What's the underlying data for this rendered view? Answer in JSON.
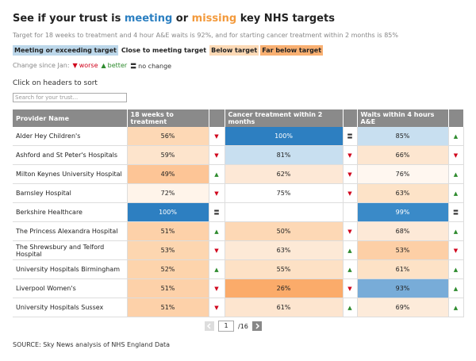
{
  "header": {
    "title": [
      {
        "text": "See if your trust is "
      },
      {
        "text": "meeting",
        "color": "#2b7fc1"
      },
      {
        "text": " or "
      },
      {
        "text": "missing",
        "color": "#f39a3c"
      },
      {
        "text": " key NHS targets"
      }
    ],
    "subtitle": "Target for 18 weeks to treatment and 4 hour A&E waits is 92%, and for starting cancer treatment within 2 months is 85%"
  },
  "key": [
    {
      "label": "Meeting or exceeding target",
      "color": "#bcd7ea"
    },
    {
      "label": "Close to meeting target",
      "color": "#ffffff"
    },
    {
      "label": "Below target",
      "color": "#fcd9b5"
    },
    {
      "label": "Far below target",
      "color": "#f9b072"
    }
  ],
  "change_legend": {
    "label": "Change since Jan:",
    "items": [
      {
        "symbol": "▼",
        "label": "worse",
        "color": "#d0021b"
      },
      {
        "symbol": "▲",
        "label": "better",
        "color": "#2e8b2e"
      },
      {
        "symbol": "〓",
        "label": "no change",
        "color": "#333333"
      }
    ]
  },
  "sort_hint": "Click on headers to sort",
  "search_placeholder": "Search for your trust...",
  "table": {
    "columns": [
      "Provider Name",
      "18 weeks to treatment",
      "Cancer treatment within 2 months",
      "Waits within 4 hours A&E"
    ],
    "rows": [
      {
        "provider": "Alder Hey Children's",
        "cells": [
          {
            "value": "56%",
            "color": "#fdd8b5",
            "change": "▼"
          },
          {
            "value": "100%",
            "color": "#2d7fc1",
            "change": "〓"
          },
          {
            "value": "85%",
            "color": "#c8dff0",
            "change": "▲"
          }
        ]
      },
      {
        "provider": "Ashford and St Peter's Hospitals",
        "cells": [
          {
            "value": "59%",
            "color": "#fde4cc",
            "change": "▼"
          },
          {
            "value": "81%",
            "color": "#c8dff0",
            "change": "▼"
          },
          {
            "value": "66%",
            "color": "#fde6d0",
            "change": "▼"
          }
        ]
      },
      {
        "provider": "Milton Keynes University Hospital",
        "cells": [
          {
            "value": "49%",
            "color": "#fdc596",
            "change": "▲"
          },
          {
            "value": "62%",
            "color": "#fde8d6",
            "change": "▼"
          },
          {
            "value": "76%",
            "color": "#fff7f0",
            "change": "▲"
          }
        ]
      },
      {
        "provider": "Barnsley Hospital",
        "cells": [
          {
            "value": "72%",
            "color": "#fff4ea",
            "change": "▼"
          },
          {
            "value": "75%",
            "color": "#ffffff",
            "change": "▼"
          },
          {
            "value": "63%",
            "color": "#fde3c8",
            "change": "▲"
          }
        ]
      },
      {
        "provider": "Berkshire Healthcare",
        "cells": [
          {
            "value": "100%",
            "color": "#2d7fc1",
            "change": "〓"
          },
          {
            "value": null,
            "color": "#ffffff",
            "change": null
          },
          {
            "value": "99%",
            "color": "#3a8ac8",
            "change": "〓"
          }
        ]
      },
      {
        "provider": "The Princess Alexandra Hospital",
        "cells": [
          {
            "value": "51%",
            "color": "#fdd1a9",
            "change": "▲"
          },
          {
            "value": "50%",
            "color": "#fdd8b5",
            "change": "▼"
          },
          {
            "value": "68%",
            "color": "#fde9d7",
            "change": "▲"
          }
        ]
      },
      {
        "provider": "The Shrewsbury and Telford Hospital",
        "cells": [
          {
            "value": "53%",
            "color": "#fdd6b0",
            "change": "▼"
          },
          {
            "value": "63%",
            "color": "#fde9d6",
            "change": "▲"
          },
          {
            "value": "53%",
            "color": "#fdcfa6",
            "change": "▼"
          }
        ]
      },
      {
        "provider": "University Hospitals Birmingham",
        "cells": [
          {
            "value": "52%",
            "color": "#fdd4ac",
            "change": "▲"
          },
          {
            "value": "55%",
            "color": "#fde1c5",
            "change": "▲"
          },
          {
            "value": "61%",
            "color": "#fde2c6",
            "change": "▲"
          }
        ]
      },
      {
        "provider": "Liverpool Women's",
        "cells": [
          {
            "value": "51%",
            "color": "#fdd1a9",
            "change": "▼"
          },
          {
            "value": "26%",
            "color": "#fbab6a",
            "change": "▼"
          },
          {
            "value": "93%",
            "color": "#78acd8",
            "change": "▲"
          }
        ]
      },
      {
        "provider": "University Hospitals Sussex",
        "cells": [
          {
            "value": "51%",
            "color": "#fdd1a9",
            "change": "▼"
          },
          {
            "value": "61%",
            "color": "#fde5cf",
            "change": "▲"
          },
          {
            "value": "69%",
            "color": "#fdebda",
            "change": "▲"
          }
        ]
      }
    ]
  },
  "pagination": {
    "page": "1",
    "total": "/16"
  },
  "source": "SOURCE: Sky News analysis of NHS England Data"
}
